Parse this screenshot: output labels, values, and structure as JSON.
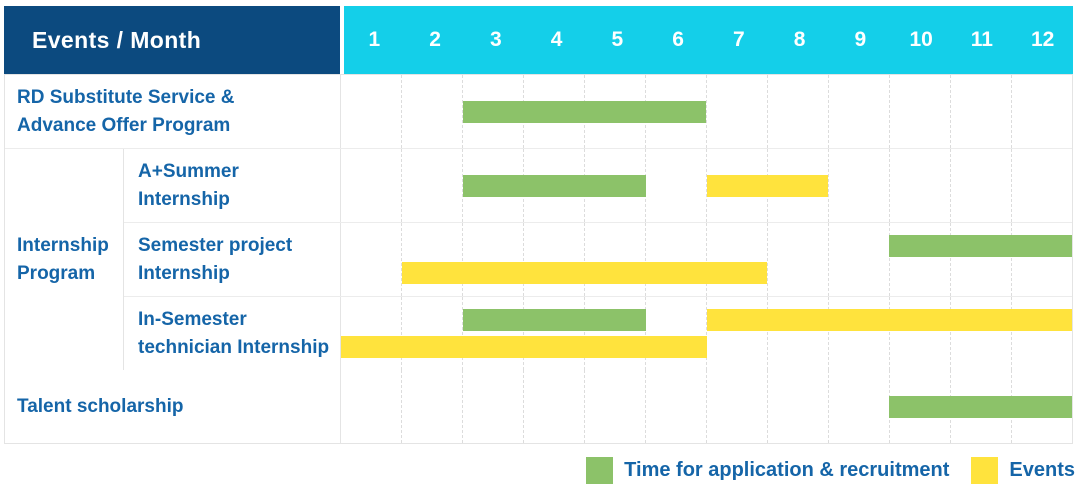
{
  "header": {
    "title": "Events / Month",
    "title_bg": "#0c4a7f",
    "months_bg": "#14cfe9",
    "months": [
      "1",
      "2",
      "3",
      "4",
      "5",
      "6",
      "7",
      "8",
      "9",
      "10",
      "11",
      "12"
    ]
  },
  "chart_data": {
    "type": "gantt",
    "x_unit": "month",
    "x_range": [
      1,
      12
    ],
    "x_ticks": [
      "1",
      "2",
      "3",
      "4",
      "5",
      "6",
      "7",
      "8",
      "9",
      "10",
      "11",
      "12"
    ],
    "series": {
      "recruitment": {
        "label": "Time for application & recruitment",
        "color": "#8cc269"
      },
      "events": {
        "label": "Events",
        "color": "#ffe33d"
      }
    },
    "group": {
      "label": "Internship Program",
      "label_lines": [
        "Internship",
        "Program"
      ]
    },
    "rows": [
      {
        "id": "rd-substitute",
        "label": "RD Substitute Service & Advance Offer Program",
        "label_lines": [
          "RD Substitute Service &",
          "Advance Offer Program"
        ],
        "lines": 1,
        "bars": [
          {
            "series": "recruitment",
            "start": 2,
            "end": 6,
            "line": 0
          }
        ]
      },
      {
        "id": "aplus-summer",
        "group": "Internship Program",
        "label": "A+Summer Internship",
        "label_lines": [
          "A+Summer",
          "Internship"
        ],
        "lines": 1,
        "bars": [
          {
            "series": "recruitment",
            "start": 2,
            "end": 5,
            "line": 0
          },
          {
            "series": "events",
            "start": 6,
            "end": 8,
            "line": 0
          }
        ]
      },
      {
        "id": "semester-project",
        "group": "Internship Program",
        "label": "Semester project Internship",
        "label_lines": [
          "Semester project",
          "Internship"
        ],
        "lines": 2,
        "bars": [
          {
            "series": "recruitment",
            "start": 9,
            "end": 12,
            "line": 0
          },
          {
            "series": "events",
            "start": 1,
            "end": 7,
            "line": 1
          }
        ]
      },
      {
        "id": "in-semester",
        "group": "Internship Program",
        "label": "In-Semester technician Internship",
        "label_lines": [
          "In-Semester",
          "technician Internship"
        ],
        "lines": 2,
        "bars": [
          {
            "series": "recruitment",
            "start": 2,
            "end": 5,
            "line": 0
          },
          {
            "series": "events",
            "start": 6,
            "end": 12,
            "line": 0
          },
          {
            "series": "events",
            "start": 0,
            "end": 6,
            "line": 1
          }
        ]
      },
      {
        "id": "talent-scholarship",
        "label": "Talent scholarship",
        "label_lines": [
          "Talent scholarship"
        ],
        "lines": 1,
        "bars": [
          {
            "series": "recruitment",
            "start": 9,
            "end": 12,
            "line": 0
          }
        ]
      }
    ]
  },
  "legend": {
    "recruitment_label": "Time for application & recruitment",
    "events_label": "Events"
  }
}
